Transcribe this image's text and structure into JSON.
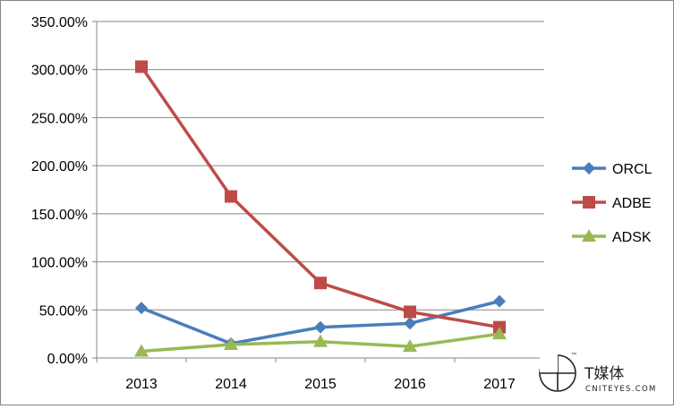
{
  "chart_data": {
    "type": "line",
    "categories": [
      "2013",
      "2014",
      "2015",
      "2016",
      "2017"
    ],
    "ylim": [
      0,
      350
    ],
    "yticks": [
      0,
      50,
      100,
      150,
      200,
      250,
      300,
      350
    ],
    "ytick_labels": [
      "0.00%",
      "50.00%",
      "100.00%",
      "150.00%",
      "200.00%",
      "250.00%",
      "300.00%",
      "350.00%"
    ],
    "grid": true,
    "legend_position": "right",
    "series": [
      {
        "name": "ORCL",
        "color": "#4a7ebb",
        "marker": "diamond",
        "values": [
          52,
          15,
          32,
          36,
          59
        ]
      },
      {
        "name": "ADBE",
        "color": "#be4b48",
        "marker": "square",
        "values": [
          303,
          168,
          78,
          48,
          32
        ]
      },
      {
        "name": "ADSK",
        "color": "#98b954",
        "marker": "triangle",
        "values": [
          7,
          14,
          17,
          12,
          25
        ]
      }
    ]
  },
  "watermark": {
    "name": "T媒体",
    "url": "CNITEYES.COM",
    "tm": "™"
  }
}
